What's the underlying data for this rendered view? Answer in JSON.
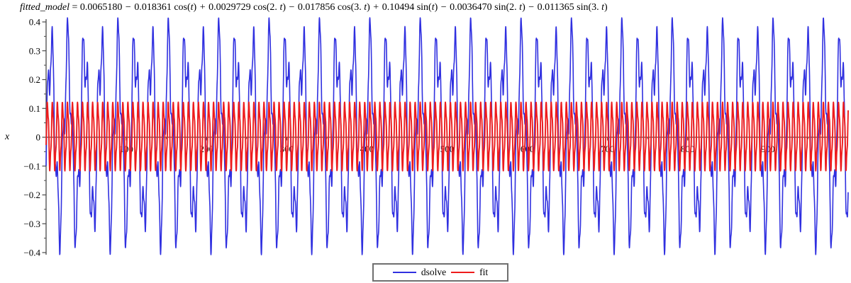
{
  "title_segments": [
    {
      "text": "fitted_model",
      "italic": true
    },
    {
      "text": " = 0.0065180 ",
      "italic": false
    },
    {
      "text": "−",
      "italic": false,
      "op": true
    },
    {
      "text": " 0.018361 cos(",
      "italic": false
    },
    {
      "text": "t",
      "italic": true
    },
    {
      "text": ") ",
      "italic": false
    },
    {
      "text": "+",
      "italic": false,
      "op": true
    },
    {
      "text": " 0.0029729 cos(2. ",
      "italic": false
    },
    {
      "text": "t",
      "italic": true
    },
    {
      "text": ") ",
      "italic": false
    },
    {
      "text": "−",
      "italic": false,
      "op": true
    },
    {
      "text": " 0.017856 cos(3. ",
      "italic": false
    },
    {
      "text": "t",
      "italic": true
    },
    {
      "text": ") ",
      "italic": false
    },
    {
      "text": "+",
      "italic": false,
      "op": true
    },
    {
      "text": " 0.10494 sin(",
      "italic": false
    },
    {
      "text": "t",
      "italic": true
    },
    {
      "text": ") ",
      "italic": false
    },
    {
      "text": "−",
      "italic": false,
      "op": true
    },
    {
      "text": " 0.0036470 sin(2. ",
      "italic": false
    },
    {
      "text": "t",
      "italic": true
    },
    {
      "text": ") ",
      "italic": false
    },
    {
      "text": "−",
      "italic": false,
      "op": true
    },
    {
      "text": " 0.011365 sin(3. ",
      "italic": false
    },
    {
      "text": "t",
      "italic": true
    },
    {
      "text": ")",
      "italic": false
    }
  ],
  "chart_data": {
    "type": "line",
    "title": "fitted_model = 0.0065180 − 0.018361 cos(t) + 0.0029729 cos(2. t) − 0.017856 cos(3. t) + 0.10494 sin(t) − 0.0036470 sin(2. t) − 0.011365 sin(3. t)",
    "xlabel": "",
    "ylabel": "x",
    "xlim": [
      0,
      1000
    ],
    "ylim": [
      -0.4,
      0.4
    ],
    "grid": false,
    "x_ticks": {
      "values": [
        100,
        200,
        300,
        400,
        500,
        600,
        700,
        800,
        900
      ],
      "labels": [
        "100",
        "200",
        "300",
        "400",
        "500",
        "600",
        "700",
        "800",
        "900"
      ],
      "minor_step": 50
    },
    "y_ticks": {
      "values": [
        0.4,
        0.3,
        0.2,
        0.1,
        0,
        -0.1,
        -0.2,
        -0.3,
        -0.4
      ],
      "labels": [
        "0.4",
        "0.3",
        "0.2",
        "0.1",
        "0",
        "−0.1",
        "−0.2",
        "−0.3",
        "−0.4"
      ],
      "minor_step": 0.05
    },
    "axis_color": "#4a4a4a",
    "sample_step": 0.2,
    "legend": {
      "position": "bottom-center",
      "entries": [
        {
          "label": "dsolve",
          "color": "#3030e0"
        },
        {
          "label": "fit",
          "color": "#ee1c1c"
        }
      ]
    },
    "series": [
      {
        "name": "dsolve",
        "color": "#3030e0",
        "width": 1.6,
        "description": "numeric ODE solution: fast oscillation of period 2π (the fitted harmonics) riding on a slow oscillation of period ≈21, total amplitude ≈0.4",
        "synthesis": {
          "base": "fit_model",
          "extra_sine": {
            "amplitude": 0.295,
            "omega": 0.3,
            "phase": -0.25
          }
        }
      },
      {
        "name": "fit",
        "color": "#ee1c1c",
        "width": 1.9,
        "model": {
          "constant": 0.006518,
          "cos_coeffs": [
            -0.018361,
            0.0029729,
            -0.017856
          ],
          "sin_coeffs": [
            0.10494,
            -0.003647,
            -0.011365
          ]
        }
      }
    ]
  }
}
